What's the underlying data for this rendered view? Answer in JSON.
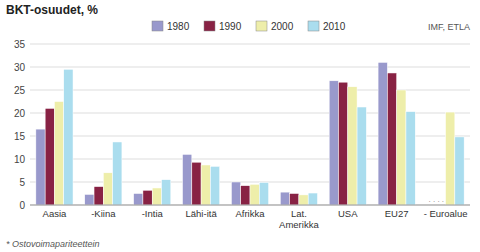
{
  "chart_data": {
    "type": "bar",
    "title": "BKT-osuudet, %",
    "categories": [
      "Aasia",
      "-Kiina",
      "-Intia",
      "Lähi-itä",
      "Afrikka",
      "Lat.\nAmerikka",
      "USA",
      "EU27",
      "- Euroalue"
    ],
    "series": [
      {
        "name": "1980",
        "color": "#9999cc",
        "values": [
          16.5,
          2.3,
          2.5,
          11.0,
          5.0,
          2.8,
          27.0,
          31.0,
          0.0
        ]
      },
      {
        "name": "1990",
        "color": "#882244",
        "values": [
          21.0,
          4.0,
          3.2,
          9.3,
          4.2,
          2.5,
          26.7,
          28.7,
          0.0
        ]
      },
      {
        "name": "2000",
        "color": "#eeeeaa",
        "values": [
          22.5,
          7.0,
          3.7,
          8.7,
          4.5,
          2.2,
          25.7,
          25.0,
          20.2
        ]
      },
      {
        "name": "2010",
        "color": "#aaddee",
        "values": [
          29.5,
          13.7,
          5.5,
          8.4,
          4.9,
          2.6,
          21.3,
          20.3,
          14.8
        ]
      }
    ],
    "ylim": [
      0,
      35
    ],
    "yticks": [
      0,
      5,
      10,
      15,
      20,
      25,
      30,
      35
    ],
    "grid": true,
    "legend": "top",
    "annotations": [
      "* Ostovoimapariteettein",
      "IMF, ETLA",
      ". . . ."
    ]
  }
}
